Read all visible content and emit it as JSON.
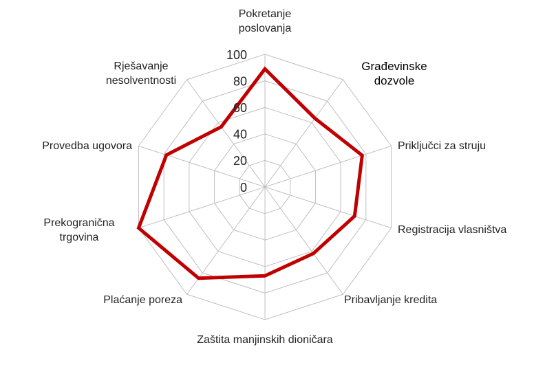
{
  "chart_data": {
    "type": "radar",
    "categories": [
      "Pokretanje poslovanja",
      "Građevinske dozvole",
      "Priključci za struju",
      "Registracija vlasništva",
      "Pribavljanje kredita",
      "Zaštita manjinskih dioničara",
      "Plaćanje poreza",
      "Prekogranična trgovina",
      "Provedba ugovora",
      "Rješavanje nesolventnosti"
    ],
    "series": [
      {
        "color": "#c00000",
        "values": [
          89,
          64,
          77,
          71,
          62,
          67,
          85,
          100,
          78,
          56
        ]
      }
    ],
    "ylim": [
      0,
      100
    ],
    "yticks": [
      0,
      20,
      40,
      60,
      80,
      100
    ],
    "grid": true
  }
}
